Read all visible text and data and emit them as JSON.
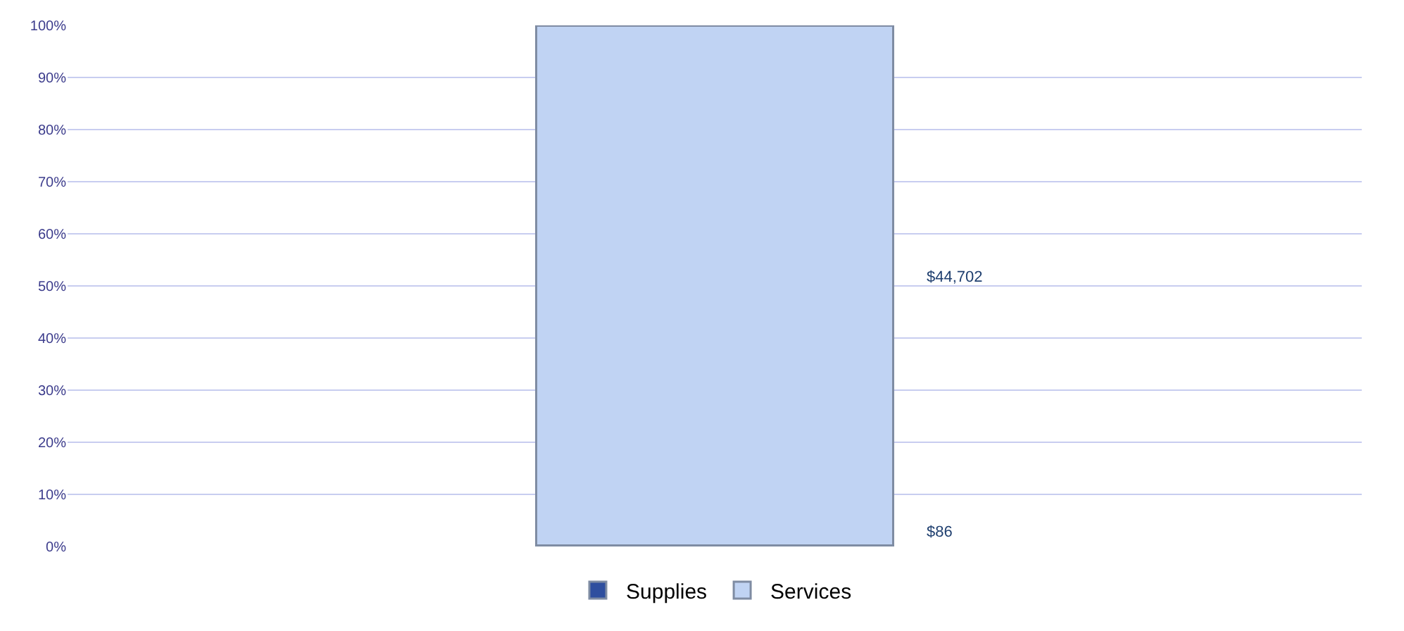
{
  "chart_data": {
    "type": "bar",
    "stacked": true,
    "categories": [
      null
    ],
    "series": [
      {
        "name": "Supplies",
        "color": "#2f4f9f",
        "values": [
          0.2
        ]
      },
      {
        "name": "Services",
        "color": "#c0d3f3",
        "values": [
          99.8
        ]
      }
    ],
    "annotations": [
      "$86",
      "$44,702"
    ],
    "ylim": [
      0,
      100
    ],
    "yticks": [
      {
        "value": 0,
        "label": "0%"
      },
      {
        "value": 10,
        "label": "10%"
      },
      {
        "value": 20,
        "label": "20%"
      },
      {
        "value": 30,
        "label": "30%"
      },
      {
        "value": 40,
        "label": "40%"
      },
      {
        "value": 50,
        "label": "50%"
      },
      {
        "value": 60,
        "label": "60%"
      },
      {
        "value": 70,
        "label": "70%"
      },
      {
        "value": 80,
        "label": "80%"
      },
      {
        "value": 90,
        "label": "90%"
      },
      {
        "value": 100,
        "label": "100%"
      }
    ],
    "grid": "y",
    "legend": "bottom"
  }
}
